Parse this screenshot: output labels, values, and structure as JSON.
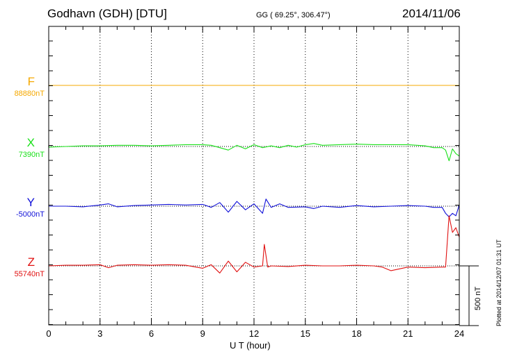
{
  "header": {
    "station": "Godhavn (GDH)  [DTU]",
    "coords": "GG ( 69.25°, 306.47°)",
    "date": "2014/11/06"
  },
  "side_note": "Plotted at 2014/12/07 01:31  UT",
  "chart_data": {
    "type": "line",
    "xlabel": "U T (hour)",
    "xlim": [
      0,
      24
    ],
    "x_ticks": [
      0,
      3,
      6,
      9,
      12,
      15,
      18,
      21,
      24
    ],
    "grid": "vertical dotted every 3 hours",
    "scale_bar": {
      "label": "500 nT",
      "value": 500
    },
    "series": [
      {
        "name": "F",
        "baseline_label": "88880nT",
        "color": "#f5a800",
        "x": [
          0,
          6,
          12,
          18,
          24
        ],
        "y": [
          0,
          0,
          0,
          0,
          0
        ]
      },
      {
        "name": "X",
        "baseline_label": "7390nT",
        "color": "#18e018",
        "x": [
          0,
          1,
          2,
          3,
          4,
          5,
          6,
          7,
          8,
          9,
          9.5,
          10,
          10.5,
          11,
          11.5,
          12,
          12.5,
          13,
          13.5,
          14,
          14.5,
          15,
          15.5,
          16,
          17,
          18,
          19,
          20,
          21,
          22,
          22.5,
          23,
          23.2,
          23.4,
          23.6,
          23.8,
          24
        ],
        "y": [
          -5,
          0,
          5,
          5,
          10,
          10,
          5,
          10,
          15,
          15,
          10,
          -10,
          -30,
          10,
          -20,
          15,
          -10,
          5,
          -10,
          10,
          -5,
          15,
          25,
          10,
          15,
          20,
          15,
          15,
          15,
          5,
          -10,
          -10,
          -30,
          -120,
          -20,
          -60,
          -80
        ]
      },
      {
        "name": "Y",
        "baseline_label": "-5000nT",
        "color": "#1010d8",
        "x": [
          0,
          1,
          2,
          3,
          3.5,
          4,
          5,
          6,
          7,
          8,
          9,
          9.5,
          10,
          10.5,
          11,
          11.5,
          12,
          12.5,
          12.7,
          13,
          13.5,
          14,
          15,
          15.5,
          16,
          17,
          18,
          19,
          20,
          21,
          22,
          22.5,
          23,
          23.2,
          23.4,
          23.6,
          23.8,
          24
        ],
        "y": [
          0,
          0,
          -5,
          10,
          20,
          -5,
          5,
          10,
          15,
          10,
          15,
          -10,
          30,
          -50,
          40,
          -30,
          20,
          -60,
          60,
          -10,
          20,
          -10,
          -5,
          -20,
          0,
          -10,
          5,
          -5,
          0,
          5,
          0,
          -10,
          -10,
          -60,
          -90,
          -60,
          -80,
          10
        ]
      },
      {
        "name": "Z",
        "baseline_label": "55740nT",
        "color": "#e01010",
        "x": [
          0,
          1,
          2,
          3,
          3.5,
          4,
          5,
          6,
          7,
          8,
          9,
          9.5,
          10,
          10.5,
          11,
          11.5,
          12,
          12.5,
          12.6,
          12.8,
          13,
          14,
          15,
          16,
          17,
          18,
          19,
          19.5,
          20,
          21,
          22,
          23,
          23.2,
          23.4,
          23.6,
          23.8,
          24
        ],
        "y": [
          0,
          5,
          5,
          10,
          -15,
          5,
          10,
          5,
          10,
          5,
          -20,
          10,
          -60,
          40,
          -50,
          30,
          -10,
          0,
          180,
          -10,
          0,
          -5,
          5,
          0,
          0,
          5,
          0,
          -10,
          -40,
          -10,
          -15,
          -10,
          -10,
          420,
          280,
          320,
          240
        ]
      }
    ]
  }
}
